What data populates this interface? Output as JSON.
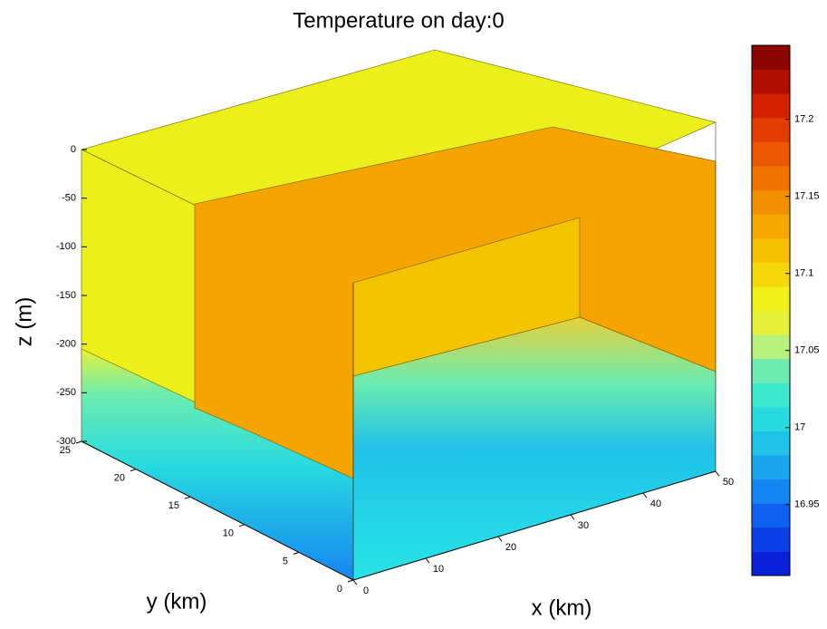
{
  "chart_data": {
    "type": "slice3d",
    "title": "Temperature on day:0",
    "xlabel": "x (km)",
    "ylabel": "y (km)",
    "zlabel": "z (m)",
    "xlim": [
      0,
      50
    ],
    "xticks": [
      0,
      10,
      20,
      30,
      40,
      50
    ],
    "ylim": [
      0,
      25
    ],
    "yticks": [
      0,
      5,
      10,
      15,
      20,
      25
    ],
    "zlim": [
      -300,
      0
    ],
    "zticks": [
      -300,
      -250,
      -200,
      -150,
      -100,
      -50,
      0
    ],
    "colorbar": {
      "lim": [
        16.904,
        17.248
      ],
      "ticks": [
        16.95,
        17,
        17.05,
        17.1,
        17.15,
        17.2
      ],
      "colors": [
        "#0a1fd8",
        "#0d3fe6",
        "#1060f0",
        "#1585f2",
        "#1aa5ee",
        "#20c2e8",
        "#28dbe0",
        "#3ee8cf",
        "#6cecb0",
        "#b8f080",
        "#e6f23a",
        "#f1f018",
        "#f4d80a",
        "#f5c000",
        "#f5a800",
        "#f39000",
        "#f07400",
        "#ec5800",
        "#e33c00",
        "#d22200",
        "#b01000",
        "#8a0400"
      ]
    }
  }
}
